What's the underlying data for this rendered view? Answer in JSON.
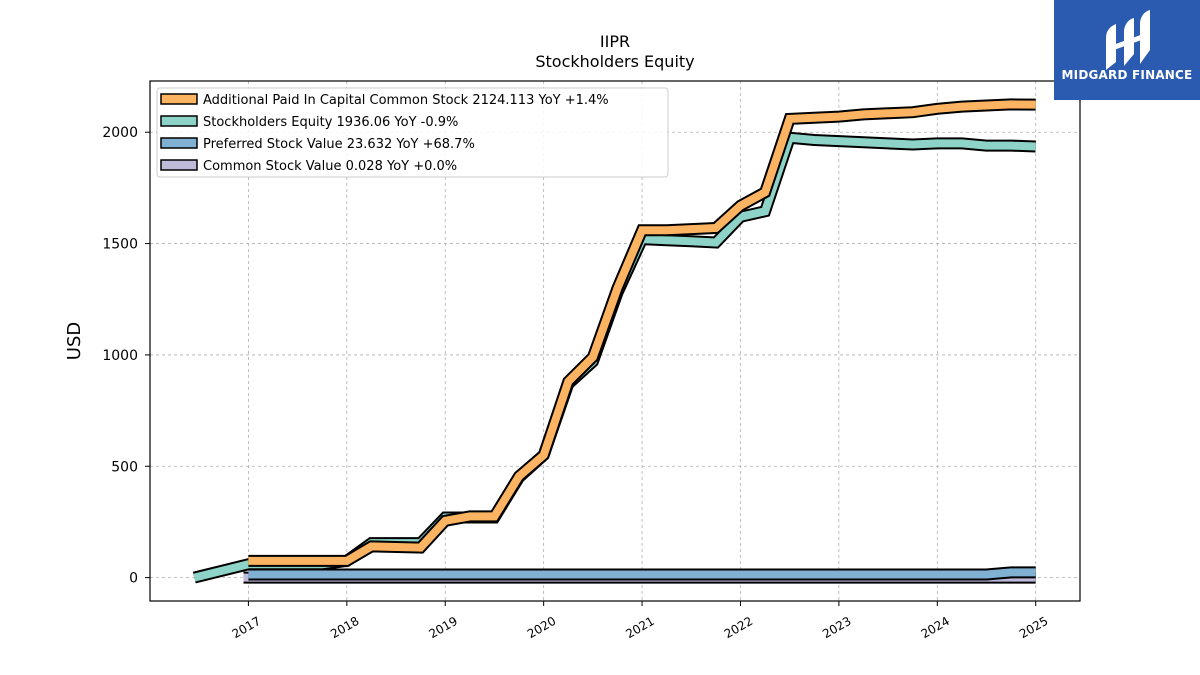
{
  "header": {
    "title": "IIPR",
    "subtitle": "Stockholders  Equity"
  },
  "brand": {
    "name": "MIDGARD FINANCE",
    "color": "#2a5bb0",
    "icon": "midgard-logo-icon"
  },
  "chart_data": {
    "type": "line",
    "ylabel": "USD",
    "xlabel": "",
    "x_ticks": [
      "2017",
      "2018",
      "2019",
      "2020",
      "2021",
      "2022",
      "2023",
      "2024",
      "2025"
    ],
    "x_range": [
      2016.0,
      2025.45
    ],
    "ylim": [
      -105,
      2230
    ],
    "y_ticks": [
      0,
      500,
      1000,
      1500,
      2000
    ],
    "grid": true,
    "legend_position": "top-left",
    "series": [
      {
        "name": "Additional Paid In Capital Common Stock  2124.113 YoY +1.4%",
        "color": "#fdb462",
        "x": [
          2017.0,
          2017.75,
          2018.0,
          2018.25,
          2018.75,
          2019.0,
          2019.25,
          2019.5,
          2019.75,
          2020.0,
          2020.25,
          2020.5,
          2020.75,
          2021.0,
          2021.25,
          2021.5,
          2021.75,
          2022.0,
          2022.25,
          2022.5,
          2022.75,
          2023.0,
          2023.25,
          2023.5,
          2023.75,
          2024.0,
          2024.25,
          2024.5,
          2024.75,
          2025.0
        ],
        "y": [
          75,
          75,
          75,
          140,
          135,
          255,
          275,
          275,
          455,
          550,
          880,
          990,
          1300,
          1560,
          1560,
          1565,
          1570,
          1670,
          1730,
          2060,
          2065,
          2070,
          2080,
          2085,
          2090,
          2105,
          2115,
          2120,
          2125,
          2124
        ]
      },
      {
        "name": "Stockholders Equity  1936.06 YoY -0.9%",
        "color": "#8dd3c7",
        "x": [
          2016.45,
          2017.0,
          2017.75,
          2018.0,
          2018.25,
          2018.75,
          2019.0,
          2019.25,
          2019.5,
          2019.75,
          2020.0,
          2020.25,
          2020.5,
          2020.75,
          2021.0,
          2021.25,
          2021.5,
          2021.75,
          2022.0,
          2022.25,
          2022.5,
          2022.75,
          2023.0,
          2023.25,
          2023.5,
          2023.75,
          2024.0,
          2024.25,
          2024.5,
          2024.75,
          2025.0
        ],
        "y": [
          0,
          60,
          60,
          75,
          155,
          155,
          270,
          270,
          270,
          450,
          550,
          870,
          970,
          1280,
          1520,
          1515,
          1510,
          1505,
          1620,
          1645,
          1975,
          1965,
          1960,
          1955,
          1950,
          1945,
          1950,
          1950,
          1940,
          1940,
          1936
        ]
      },
      {
        "name": "Preferred Stock Value  23.632 YoY +68.7%",
        "color": "#80b1d3",
        "x": [
          2017.0,
          2018.0,
          2019.0,
          2020.0,
          2021.0,
          2022.0,
          2023.0,
          2024.0,
          2024.5,
          2024.75,
          2025.0
        ],
        "y": [
          14,
          14,
          14,
          14,
          14,
          14,
          14,
          14,
          14,
          23.6,
          23.6
        ]
      },
      {
        "name": "Common Stock Value  0.028 YoY +0.0%",
        "color": "#bebada",
        "x": [
          2016.95,
          2025.0
        ],
        "y": [
          0,
          0
        ]
      }
    ]
  }
}
